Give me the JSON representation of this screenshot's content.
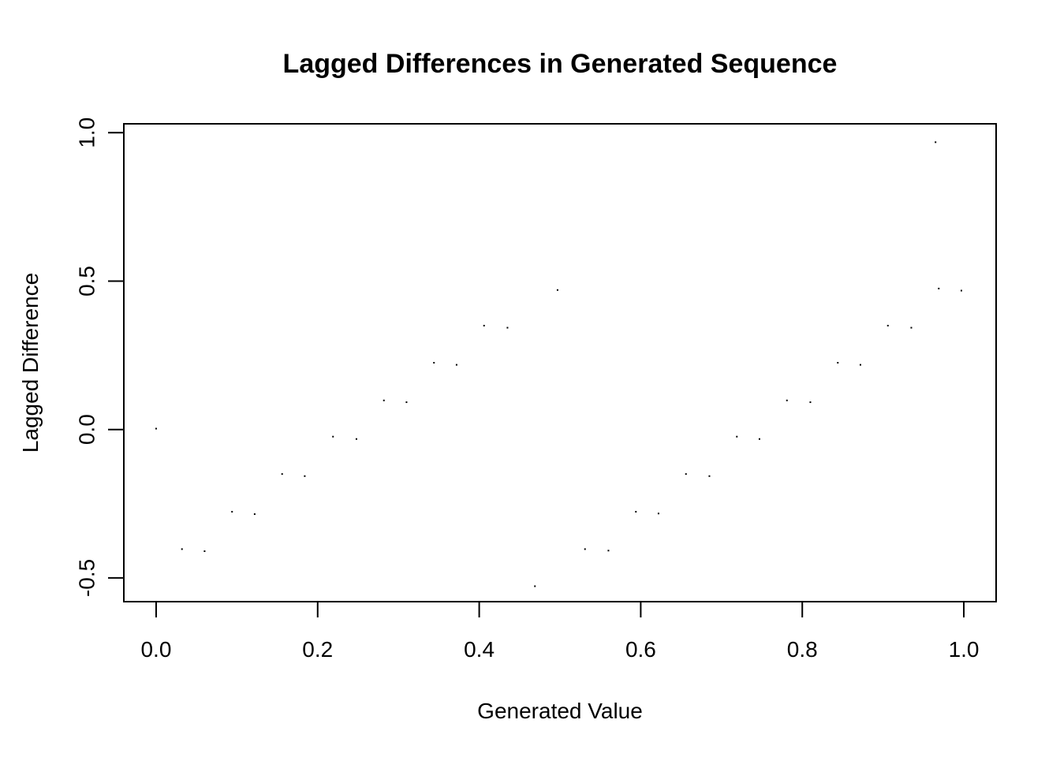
{
  "chart_data": {
    "type": "scatter",
    "title": "Lagged Differences in Generated Sequence",
    "xlabel": "Generated Value",
    "ylabel": "Lagged Difference",
    "xlim": [
      -0.04,
      1.04
    ],
    "ylim": [
      -0.58,
      1.03
    ],
    "x_ticks": [
      0.0,
      0.2,
      0.4,
      0.6,
      0.8,
      1.0
    ],
    "x_tick_labels": [
      "0.0",
      "0.2",
      "0.4",
      "0.6",
      "0.8",
      "1.0"
    ],
    "y_ticks": [
      -0.5,
      0.0,
      0.5,
      1.0
    ],
    "y_tick_labels": [
      "-0.5",
      "0.0",
      "0.5",
      "1.0"
    ],
    "grid": false,
    "legend": "none",
    "marker_color": "#000000",
    "points": [
      {
        "x": 0.0,
        "y": 0.003
      },
      {
        "x": 0.032,
        "y": -0.403
      },
      {
        "x": 0.06,
        "y": -0.41
      },
      {
        "x": 0.094,
        "y": -0.277
      },
      {
        "x": 0.122,
        "y": -0.285
      },
      {
        "x": 0.156,
        "y": -0.15
      },
      {
        "x": 0.184,
        "y": -0.157
      },
      {
        "x": 0.219,
        "y": -0.024
      },
      {
        "x": 0.248,
        "y": -0.032
      },
      {
        "x": 0.282,
        "y": 0.098
      },
      {
        "x": 0.31,
        "y": 0.092
      },
      {
        "x": 0.344,
        "y": 0.225
      },
      {
        "x": 0.372,
        "y": 0.218
      },
      {
        "x": 0.406,
        "y": 0.35
      },
      {
        "x": 0.435,
        "y": 0.343
      },
      {
        "x": 0.469,
        "y": -0.528
      },
      {
        "x": 0.497,
        "y": 0.47
      },
      {
        "x": 0.531,
        "y": -0.403
      },
      {
        "x": 0.56,
        "y": -0.408
      },
      {
        "x": 0.594,
        "y": -0.277
      },
      {
        "x": 0.622,
        "y": -0.283
      },
      {
        "x": 0.656,
        "y": -0.15
      },
      {
        "x": 0.685,
        "y": -0.157
      },
      {
        "x": 0.719,
        "y": -0.024
      },
      {
        "x": 0.747,
        "y": -0.032
      },
      {
        "x": 0.781,
        "y": 0.098
      },
      {
        "x": 0.81,
        "y": 0.092
      },
      {
        "x": 0.844,
        "y": 0.225
      },
      {
        "x": 0.872,
        "y": 0.218
      },
      {
        "x": 0.906,
        "y": 0.35
      },
      {
        "x": 0.935,
        "y": 0.343
      },
      {
        "x": 0.965,
        "y": 0.968
      },
      {
        "x": 0.969,
        "y": 0.475
      },
      {
        "x": 0.997,
        "y": 0.468
      }
    ]
  }
}
